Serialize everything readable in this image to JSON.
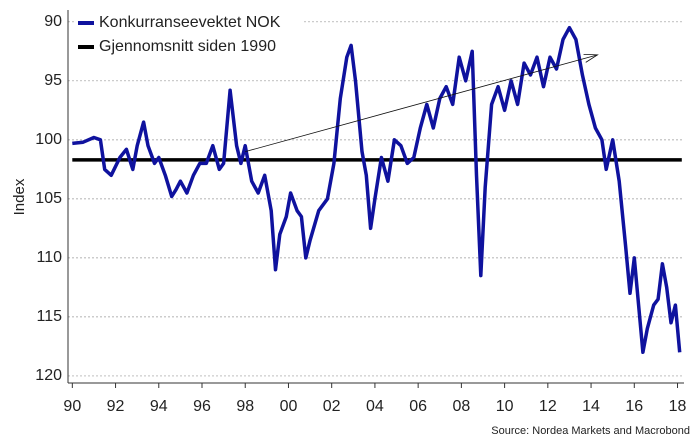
{
  "chart_data": {
    "type": "line",
    "ylabel": "Index",
    "source": "Source: Nordea Markets and Macrobond",
    "xlim": [
      1989.8,
      2018.3
    ],
    "ylim": [
      89,
      120.6
    ],
    "y_inverted": true,
    "grid": true,
    "legend": "upper left",
    "xticks": [
      {
        "value": 1990,
        "label": "90"
      },
      {
        "value": 1992,
        "label": "92"
      },
      {
        "value": 1994,
        "label": "94"
      },
      {
        "value": 1996,
        "label": "96"
      },
      {
        "value": 1998,
        "label": "98"
      },
      {
        "value": 2000,
        "label": "00"
      },
      {
        "value": 2002,
        "label": "02"
      },
      {
        "value": 2004,
        "label": "04"
      },
      {
        "value": 2006,
        "label": "06"
      },
      {
        "value": 2008,
        "label": "08"
      },
      {
        "value": 2010,
        "label": "10"
      },
      {
        "value": 2012,
        "label": "12"
      },
      {
        "value": 2014,
        "label": "14"
      },
      {
        "value": 2016,
        "label": "16"
      },
      {
        "value": 2018,
        "label": "18"
      }
    ],
    "yticks": [
      90,
      95,
      100,
      105,
      110,
      115,
      120
    ],
    "series": [
      {
        "name": "Konkurranseevektet NOK",
        "color": "#0f129e",
        "x": [
          1990.0,
          1990.5,
          1991.0,
          1991.3,
          1991.5,
          1991.8,
          1992.2,
          1992.5,
          1992.8,
          1993.0,
          1993.3,
          1993.5,
          1993.8,
          1994.0,
          1994.3,
          1994.6,
          1994.8,
          1995.0,
          1995.3,
          1995.6,
          1995.9,
          1996.2,
          1996.5,
          1996.8,
          1997.0,
          1997.3,
          1997.6,
          1997.8,
          1998.0,
          1998.3,
          1998.6,
          1998.9,
          1999.2,
          1999.4,
          1999.6,
          1999.9,
          2000.1,
          2000.4,
          2000.6,
          2000.8,
          2001.0,
          2001.4,
          2001.8,
          2002.1,
          2002.4,
          2002.7,
          2002.9,
          2003.1,
          2003.4,
          2003.6,
          2003.8,
          2004.0,
          2004.3,
          2004.6,
          2004.9,
          2005.2,
          2005.5,
          2005.8,
          2006.1,
          2006.4,
          2006.7,
          2007.0,
          2007.3,
          2007.6,
          2007.9,
          2008.2,
          2008.5,
          2008.7,
          2008.9,
          2009.1,
          2009.4,
          2009.7,
          2010.0,
          2010.3,
          2010.6,
          2010.9,
          2011.2,
          2011.5,
          2011.8,
          2012.1,
          2012.4,
          2012.7,
          2013.0,
          2013.3,
          2013.6,
          2013.9,
          2014.2,
          2014.5,
          2014.7,
          2015.0,
          2015.3,
          2015.6,
          2015.8,
          2016.0,
          2016.2,
          2016.4,
          2016.6,
          2016.9,
          2017.1,
          2017.3,
          2017.5,
          2017.7,
          2017.9,
          2018.1
        ],
        "values": [
          100.3,
          100.2,
          99.8,
          100.0,
          102.5,
          103.0,
          101.5,
          100.8,
          102.5,
          100.5,
          98.5,
          100.5,
          102.0,
          101.5,
          103.0,
          104.8,
          104.2,
          103.5,
          104.5,
          103.0,
          102.0,
          102.0,
          100.5,
          102.5,
          102.0,
          95.8,
          100.5,
          102.0,
          100.5,
          103.5,
          104.5,
          103.0,
          106.0,
          111.0,
          108.0,
          106.5,
          104.5,
          106.0,
          106.5,
          110.0,
          108.5,
          106.0,
          105.0,
          102.0,
          96.5,
          93.0,
          92.0,
          95.0,
          101.0,
          103.0,
          107.5,
          105.0,
          101.5,
          103.5,
          100.0,
          100.5,
          102.0,
          101.5,
          99.0,
          97.0,
          99.0,
          96.5,
          95.5,
          97.0,
          93.0,
          95.0,
          92.5,
          103.0,
          111.5,
          104.0,
          97.0,
          95.5,
          97.5,
          95.0,
          97.0,
          93.5,
          94.5,
          93.0,
          95.5,
          93.0,
          94.0,
          91.5,
          90.5,
          91.5,
          94.5,
          97.0,
          99.0,
          100.0,
          102.5,
          100.0,
          103.5,
          109.0,
          113.0,
          110.0,
          114.0,
          118.0,
          116.0,
          114.0,
          113.5,
          110.5,
          112.5,
          115.5,
          114.0,
          118.0
        ]
      },
      {
        "name": "Gjennomsnitt siden 1990",
        "color": "#000000",
        "x": [
          1990.0,
          2018.2
        ],
        "values": [
          101.7,
          101.7
        ]
      }
    ],
    "arrow": {
      "from": [
        1998.0,
        101.0
      ],
      "to": [
        2014.3,
        92.8
      ]
    }
  }
}
